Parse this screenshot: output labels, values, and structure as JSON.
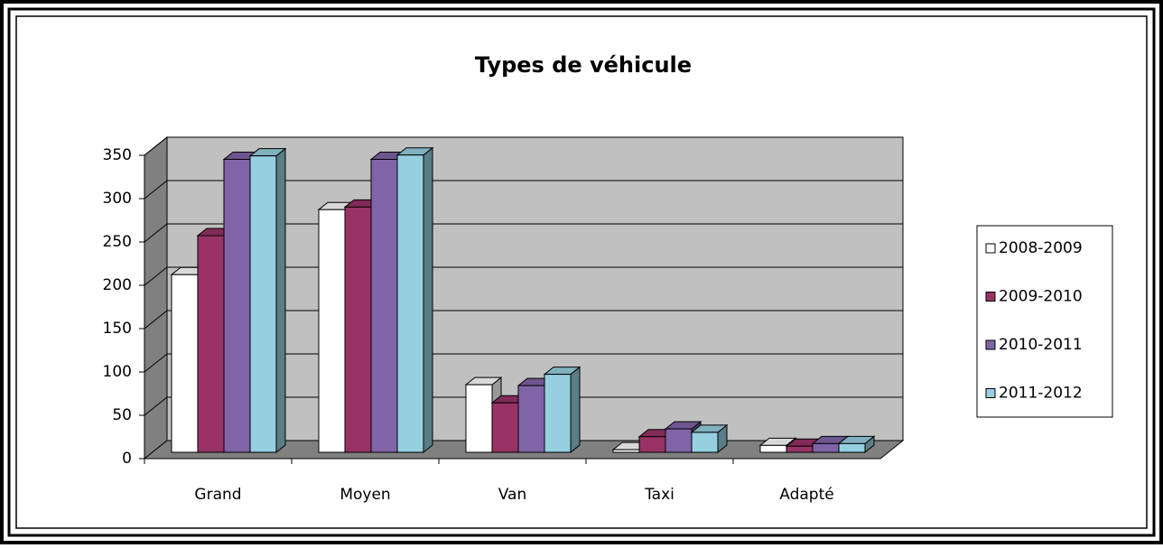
{
  "chart_data": {
    "type": "bar",
    "title": "Types de véhicule",
    "categories": [
      "Grand",
      "Moyen",
      "Van",
      "Taxi",
      "Adapté"
    ],
    "series": [
      {
        "name": "2008-2009",
        "color": "#ffffff",
        "values": [
          205,
          280,
          78,
          3,
          8
        ]
      },
      {
        "name": "2009-2010",
        "color": "#993366",
        "values": [
          250,
          283,
          57,
          18,
          7
        ]
      },
      {
        "name": "2010-2011",
        "color": "#8064a8",
        "values": [
          338,
          338,
          77,
          27,
          10
        ]
      },
      {
        "name": "2011-2012",
        "color": "#96d0e0",
        "values": [
          342,
          343,
          90,
          23,
          10
        ]
      }
    ],
    "ylim": [
      0,
      350
    ],
    "yticks": [
      0,
      50,
      100,
      150,
      200,
      250,
      300,
      350
    ],
    "grid": true,
    "legend": "right"
  }
}
